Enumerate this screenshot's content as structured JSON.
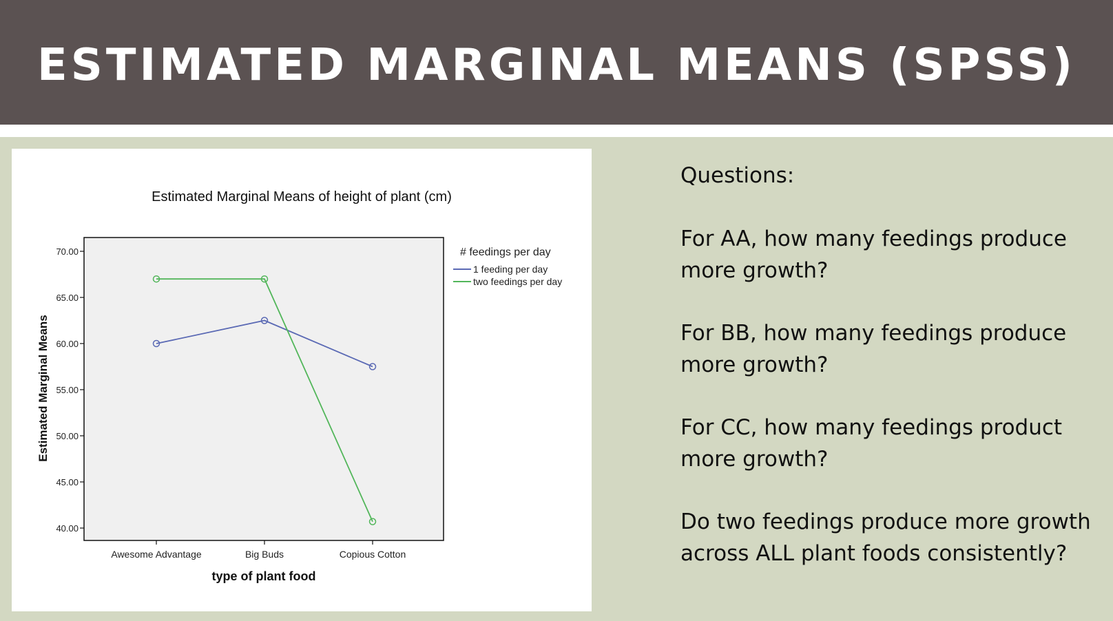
{
  "header": {
    "title": "ESTIMATED MARGINAL MEANS (SPSS)"
  },
  "colors": {
    "header_bg": "#5b5252",
    "slide_bg": "#d3d8c2",
    "series_1": "#5a69b4",
    "series_2": "#52b65a"
  },
  "questions": {
    "heading": "Questions:",
    "items": [
      "For AA, how many feedings produce more growth?",
      "For BB, how many feedings produce more growth?",
      "For CC, how many feedings product more growth?",
      "Do two feedings produce more growth across ALL plant foods consistently?"
    ]
  },
  "chart_data": {
    "type": "line",
    "title": "Estimated Marginal Means of height of plant (cm)",
    "xlabel": "type of plant food",
    "ylabel": "Estimated Marginal Means",
    "categories": [
      "Awesome Advantage",
      "Big Buds",
      "Copious Cotton"
    ],
    "yticks": [
      "40.00",
      "45.00",
      "50.00",
      "55.00",
      "60.00",
      "65.00",
      "70.00"
    ],
    "ylim": [
      40,
      70
    ],
    "legend_title": "# feedings per day",
    "legend_position": "right",
    "grid": false,
    "series": [
      {
        "name": "1 feeding per day",
        "values": [
          60.0,
          62.5,
          57.5
        ],
        "color": "#5a69b4"
      },
      {
        "name": "two feedings per day",
        "values": [
          67.0,
          67.0,
          40.7
        ],
        "color": "#52b65a"
      }
    ]
  }
}
